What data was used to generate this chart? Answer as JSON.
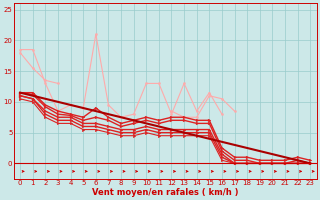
{
  "xlabel": "Vent moyen/en rafales ( km/h )",
  "xlim": [
    0,
    23
  ],
  "ylim": [
    0,
    26
  ],
  "background_color": "#cce8e8",
  "grid_color": "#99cccc",
  "text_color": "#cc0000",
  "series": [
    {
      "x": [
        0,
        1,
        2,
        3
      ],
      "y": [
        18.0,
        15.5,
        13.5,
        13.0
      ],
      "color": "#ffaaaa",
      "lw": 0.8,
      "marker": "o",
      "markersize": 1.5
    },
    {
      "x": [
        0,
        1,
        2,
        3,
        4,
        5,
        6,
        7,
        8,
        9,
        10,
        11,
        12,
        13,
        14,
        15,
        16
      ],
      "y": [
        18.5,
        18.5,
        13.0,
        8.5,
        9.5,
        9.0,
        21.0,
        9.5,
        7.5,
        8.0,
        13.0,
        13.0,
        8.0,
        13.0,
        8.5,
        11.5,
        8.0
      ],
      "color": "#ffaaaa",
      "lw": 0.8,
      "marker": "o",
      "markersize": 1.5
    },
    {
      "x": [
        12,
        13,
        14,
        15,
        16,
        17
      ],
      "y": [
        8.5,
        7.5,
        7.5,
        11.0,
        10.5,
        8.5
      ],
      "color": "#ffaaaa",
      "lw": 0.8,
      "marker": "o",
      "markersize": 1.5
    },
    {
      "x": [
        0,
        1,
        2,
        3,
        4,
        5,
        6,
        7,
        8,
        9,
        10,
        11,
        12,
        13,
        14,
        15,
        16,
        17,
        18,
        19,
        20,
        21,
        22,
        23
      ],
      "y": [
        11.5,
        11.5,
        9.5,
        8.5,
        8.0,
        7.5,
        9.0,
        7.5,
        6.5,
        7.0,
        7.5,
        7.0,
        7.5,
        7.5,
        7.0,
        7.0,
        2.5,
        1.0,
        1.0,
        0.5,
        0.5,
        0.5,
        1.0,
        0.5
      ],
      "color": "#dd2222",
      "lw": 1.0,
      "marker": ">",
      "markersize": 2.0
    },
    {
      "x": [
        0,
        1,
        2,
        3,
        4,
        5,
        6,
        7,
        8,
        9,
        10,
        11,
        12,
        13,
        14,
        15,
        16,
        17,
        18,
        19,
        20,
        21,
        22,
        23
      ],
      "y": [
        11.5,
        11.2,
        9.2,
        8.0,
        7.8,
        7.0,
        7.5,
        7.0,
        6.0,
        6.5,
        7.0,
        6.5,
        7.0,
        7.0,
        6.5,
        6.5,
        2.0,
        0.5,
        0.5,
        0.0,
        0.0,
        0.0,
        0.5,
        0.0
      ],
      "color": "#dd2222",
      "lw": 1.0,
      "marker": ">",
      "markersize": 2.0
    },
    {
      "x": [
        0,
        1,
        2,
        3,
        4,
        5,
        6,
        7,
        8,
        9,
        10,
        11,
        12,
        13,
        14,
        15,
        16,
        17,
        18,
        19,
        20,
        21,
        22,
        23
      ],
      "y": [
        11.0,
        10.5,
        8.5,
        7.5,
        7.5,
        6.5,
        6.5,
        6.0,
        5.5,
        5.5,
        6.0,
        5.5,
        5.5,
        5.5,
        5.5,
        5.5,
        1.5,
        0.0,
        0.0,
        0.0,
        0.0,
        0.0,
        0.0,
        0.0
      ],
      "color": "#dd2222",
      "lw": 1.0,
      "marker": ">",
      "markersize": 2.0
    },
    {
      "x": [
        0,
        1,
        2,
        3,
        4,
        5,
        6,
        7,
        8,
        9,
        10,
        11,
        12,
        13,
        14,
        15,
        16,
        17,
        18,
        19,
        20,
        21,
        22,
        23
      ],
      "y": [
        11.0,
        10.5,
        8.0,
        7.0,
        7.0,
        6.0,
        6.0,
        5.5,
        5.0,
        5.0,
        5.5,
        5.0,
        5.0,
        5.0,
        5.0,
        5.0,
        1.0,
        0.0,
        0.0,
        0.0,
        0.0,
        0.0,
        0.0,
        0.0
      ],
      "color": "#dd2222",
      "lw": 1.0,
      "marker": ">",
      "markersize": 2.0
    },
    {
      "x": [
        0,
        1,
        2,
        3,
        4,
        5,
        6,
        7,
        8,
        9,
        10,
        11,
        12,
        13,
        14,
        15,
        16,
        17,
        18,
        19,
        20,
        21,
        22,
        23
      ],
      "y": [
        10.5,
        10.0,
        7.5,
        6.5,
        6.5,
        5.5,
        5.5,
        5.0,
        4.5,
        4.5,
        5.0,
        4.5,
        4.5,
        4.5,
        4.5,
        4.5,
        0.5,
        0.0,
        0.0,
        0.0,
        0.0,
        0.0,
        0.0,
        0.0
      ],
      "color": "#dd2222",
      "lw": 0.8,
      "marker": ">",
      "markersize": 1.8
    },
    {
      "x": [
        0,
        23
      ],
      "y": [
        11.5,
        0.0
      ],
      "color": "#aa0000",
      "lw": 1.5,
      "marker": null,
      "markersize": 0
    }
  ],
  "yticks": [
    0,
    5,
    10,
    15,
    20,
    25
  ],
  "xticks": [
    0,
    1,
    2,
    3,
    4,
    5,
    6,
    7,
    8,
    9,
    10,
    11,
    12,
    13,
    14,
    15,
    16,
    17,
    18,
    19,
    20,
    21,
    22,
    23
  ]
}
